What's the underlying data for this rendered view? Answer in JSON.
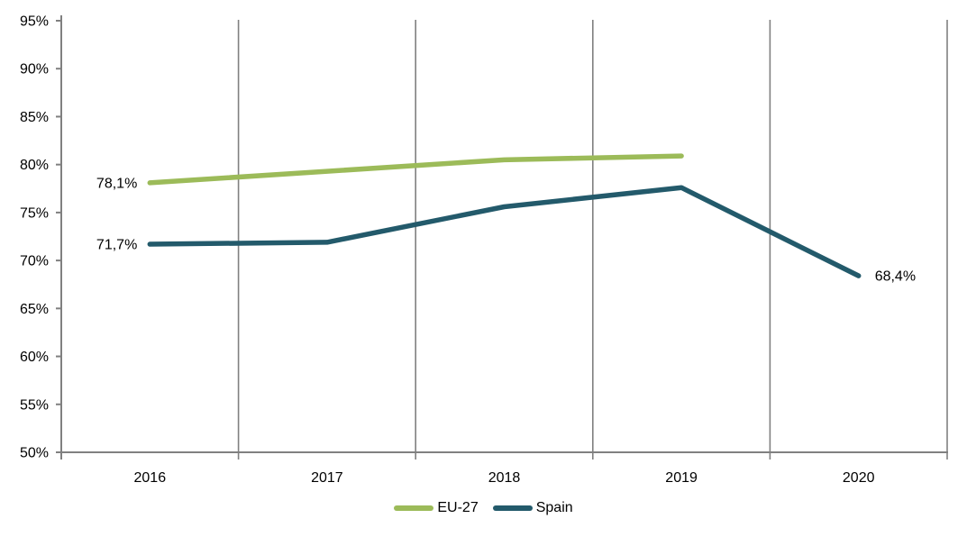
{
  "chart_data": {
    "type": "line",
    "categories": [
      "2016",
      "2017",
      "2018",
      "2019",
      "2020"
    ],
    "series": [
      {
        "name": "EU-27",
        "color": "#9CBB59",
        "values": [
          78.1,
          79.3,
          80.5,
          80.9,
          null
        ]
      },
      {
        "name": "Spain",
        "color": "#235A6B",
        "values": [
          71.7,
          71.9,
          75.6,
          77.6,
          68.4
        ]
      }
    ],
    "title": "",
    "xlabel": "",
    "ylabel": "",
    "ylim": [
      50,
      95
    ],
    "y_ticks": [
      {
        "label": "95%",
        "value": 95
      },
      {
        "label": "90%",
        "value": 90
      },
      {
        "label": "85%",
        "value": 85
      },
      {
        "label": "80%",
        "value": 80
      },
      {
        "label": "75%",
        "value": 75
      },
      {
        "label": "70%",
        "value": 70
      },
      {
        "label": "65%",
        "value": 65
      },
      {
        "label": "60%",
        "value": 60
      },
      {
        "label": "55%",
        "value": 55
      },
      {
        "label": "50%",
        "value": 50
      }
    ],
    "point_labels": [
      {
        "series_index": 0,
        "x_index": 0,
        "text": "78,1%",
        "side": "left"
      },
      {
        "series_index": 1,
        "x_index": 0,
        "text": "71,7%",
        "side": "left"
      },
      {
        "series_index": 1,
        "x_index": 4,
        "text": "68,4%",
        "side": "right"
      }
    ],
    "grid": "vertical-only",
    "legend_position": "bottom-center",
    "axis_color": "#808080",
    "grid_color": "#808080",
    "text_color": "#000000"
  }
}
